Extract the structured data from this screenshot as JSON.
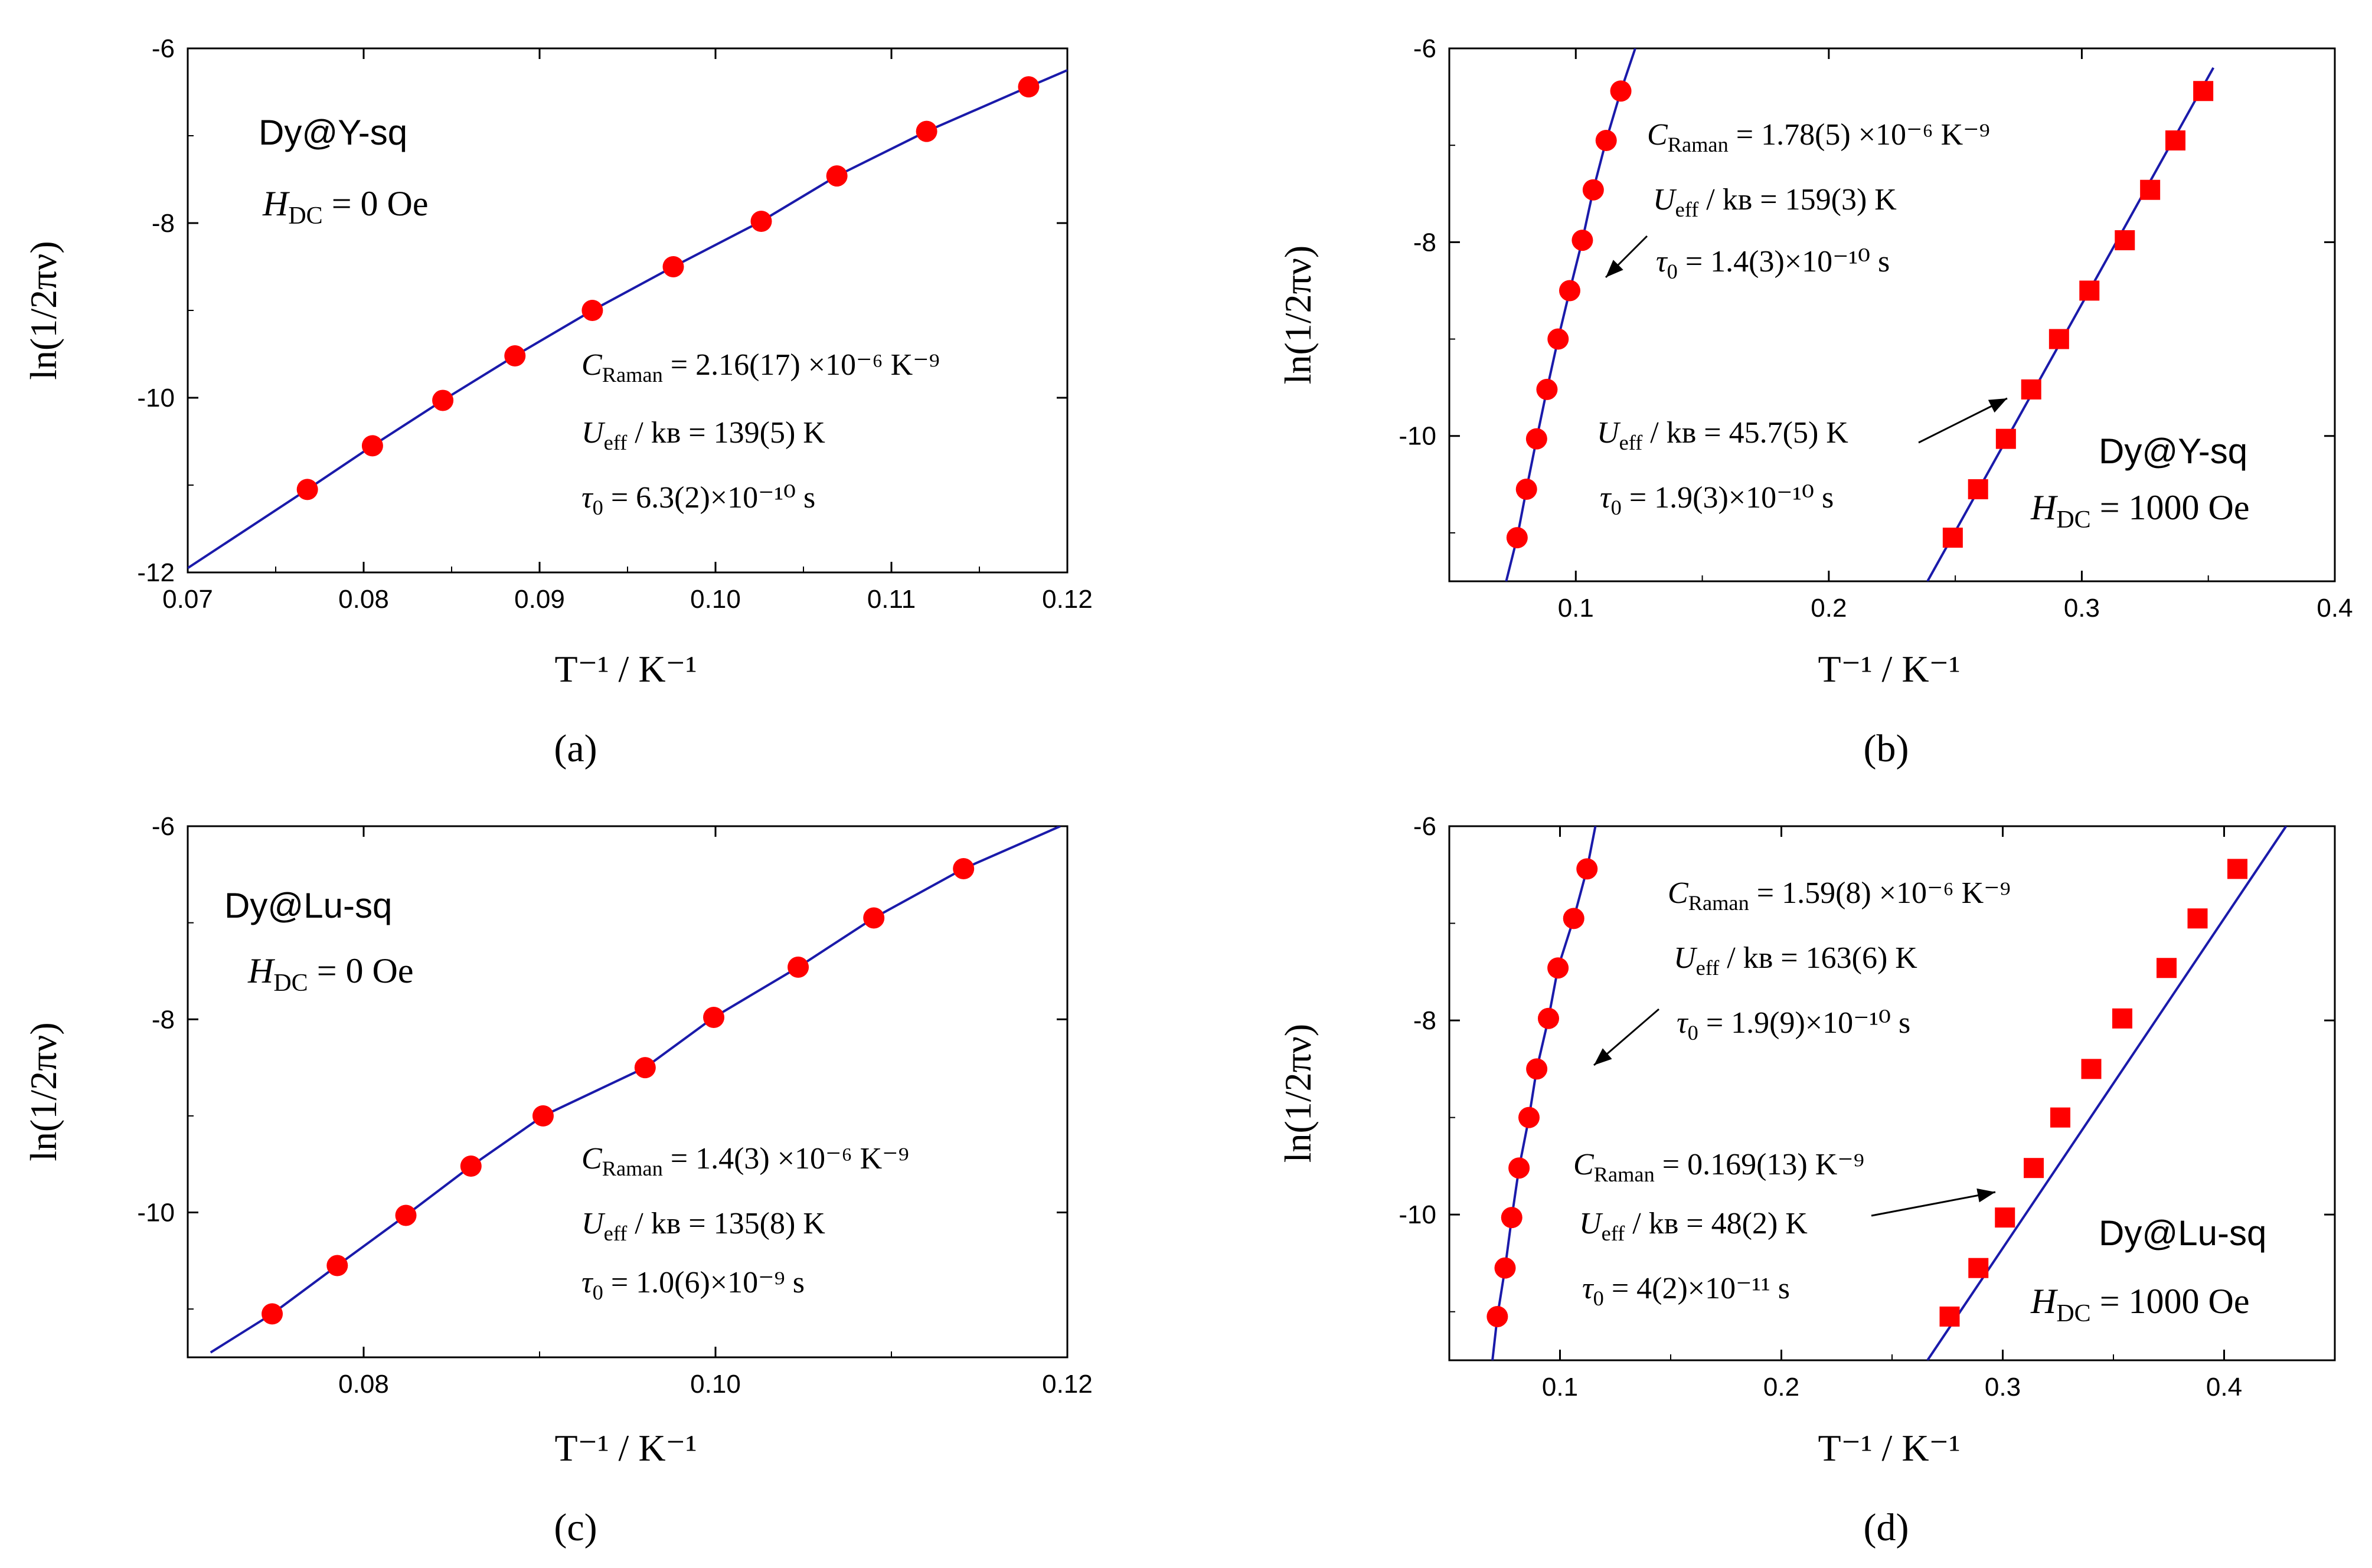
{
  "figure": {
    "colors": {
      "fit_line": "#1a1aaa",
      "marker": "#ff0000",
      "axis": "#000000",
      "background": "#ffffff"
    }
  },
  "chart_data": [
    {
      "id": "a",
      "type": "scatter",
      "caption": "(a)",
      "xlabel": "T⁻¹ / K⁻¹",
      "ylabel": "ln(1/2πν)",
      "xlim": [
        0.07,
        0.12
      ],
      "ylim": [
        -12,
        -6
      ],
      "xticks": [
        0.07,
        0.08,
        0.09,
        0.1,
        0.11,
        0.12
      ],
      "xtick_labels": [
        "0.07",
        "0.08",
        "0.09",
        "0.10",
        "0.11",
        "0.12"
      ],
      "yticks": [
        -12,
        -10,
        -8,
        -6
      ],
      "ytick_labels": [
        "-12",
        "-10",
        "-8",
        "-6"
      ],
      "sample_label": "Dy@Y-sq",
      "field_label": {
        "sym": "H",
        "sub": "DC",
        "rest": " = 0 Oe"
      },
      "annotations": [
        {
          "pre": "C",
          "sub": "Raman",
          "text": " = 2.16(17) ×10⁻⁶ K⁻⁹"
        },
        {
          "pre": "U",
          "sub": "eff",
          "text": " / kʙ = 139(5) K"
        },
        {
          "pre": "τ",
          "sub": "0",
          "text": " = 6.3(2)×10⁻¹⁰ s"
        }
      ],
      "series": [
        {
          "name": "Dy@Y-sq 0 Oe",
          "marker": "circle",
          "x": [
            0.0768,
            0.0805,
            0.0845,
            0.0886,
            0.093,
            0.0976,
            0.1026,
            0.1069,
            0.112,
            0.1178
          ],
          "y": [
            -11.05,
            -10.55,
            -10.03,
            -9.52,
            -9.0,
            -8.5,
            -7.98,
            -7.46,
            -6.95,
            -6.44
          ]
        }
      ],
      "fit_lines": [
        {
          "x": [
            0.07,
            0.0768,
            0.0805,
            0.0845,
            0.0886,
            0.093,
            0.0976,
            0.1026,
            0.1069,
            0.112,
            0.1178,
            0.12
          ],
          "y": [
            -11.95,
            -11.05,
            -10.55,
            -10.03,
            -9.52,
            -9.0,
            -8.5,
            -7.98,
            -7.46,
            -6.95,
            -6.44,
            -6.25
          ]
        }
      ]
    },
    {
      "id": "b",
      "type": "scatter",
      "caption": "(b)",
      "xlabel": "T⁻¹ / K⁻¹",
      "ylabel": "ln(1/2πν)",
      "xlim": [
        0.05,
        0.4
      ],
      "ylim": [
        -11.5,
        -6
      ],
      "xticks": [
        0.1,
        0.2,
        0.3,
        0.4
      ],
      "xtick_labels": [
        "0.1",
        "0.2",
        "0.3",
        "0.4"
      ],
      "yticks": [
        -10,
        -8,
        -6
      ],
      "ytick_labels": [
        "-10",
        "-8",
        "-6"
      ],
      "sample_label": "Dy@Y-sq",
      "field_label": {
        "sym": "H",
        "sub": "DC",
        "rest": " = 1000 Oe"
      },
      "annotations": [
        {
          "pre": "C",
          "sub": "Raman",
          "text": " = 1.78(5) ×10⁻⁶ K⁻⁹"
        },
        {
          "pre": "U",
          "sub": "eff",
          "text": " / kʙ = 159(3) K"
        },
        {
          "pre": "τ",
          "sub": "0",
          "text": " = 1.4(3)×10⁻¹⁰ s"
        },
        {
          "pre": "U",
          "sub": "eff",
          "text": " / kʙ = 45.7(5) K"
        },
        {
          "pre": "τ",
          "sub": "0",
          "text": " = 1.9(3)×10⁻¹⁰ s"
        }
      ],
      "series": [
        {
          "name": "Dy@Y-sq 0 Oe",
          "marker": "circle",
          "x": [
            0.0768,
            0.0805,
            0.0845,
            0.0886,
            0.093,
            0.0976,
            0.1026,
            0.1069,
            0.112,
            0.1178
          ],
          "y": [
            -11.05,
            -10.55,
            -10.03,
            -9.52,
            -9.0,
            -8.5,
            -7.98,
            -7.46,
            -6.95,
            -6.44
          ]
        },
        {
          "name": "Dy@Y-sq 1000 Oe",
          "marker": "square",
          "x": [
            0.249,
            0.259,
            0.27,
            0.28,
            0.291,
            0.303,
            0.317,
            0.327,
            0.337,
            0.348
          ],
          "y": [
            -11.05,
            -10.55,
            -10.03,
            -9.52,
            -9.0,
            -8.5,
            -7.98,
            -7.46,
            -6.95,
            -6.44
          ]
        }
      ],
      "fit_lines": [
        {
          "x": [
            0.0725,
            0.0768,
            0.0805,
            0.0845,
            0.0886,
            0.093,
            0.0976,
            0.1026,
            0.1069,
            0.112,
            0.1178,
            0.1235
          ],
          "y": [
            -11.5,
            -11.05,
            -10.55,
            -10.03,
            -9.52,
            -9.0,
            -8.5,
            -7.98,
            -7.46,
            -6.95,
            -6.44,
            -6.0
          ]
        },
        {
          "x": [
            0.239,
            0.352
          ],
          "y": [
            -11.5,
            -6.2
          ]
        }
      ]
    },
    {
      "id": "c",
      "type": "scatter",
      "caption": "(c)",
      "xlabel": "T⁻¹ / K⁻¹",
      "ylabel": "ln(1/2πν)",
      "xlim": [
        0.07,
        0.12
      ],
      "ylim": [
        -11.5,
        -6
      ],
      "xticks": [
        0.08,
        0.1,
        0.12
      ],
      "xtick_labels": [
        "0.08",
        "0.10",
        "0.12"
      ],
      "yticks": [
        -10,
        -8,
        -6
      ],
      "ytick_labels": [
        "-10",
        "-8",
        "-6"
      ],
      "sample_label": "Dy@Lu-sq",
      "field_label": {
        "sym": "H",
        "sub": "DC",
        "rest": " = 0 Oe"
      },
      "annotations": [
        {
          "pre": "C",
          "sub": "Raman",
          "text": " = 1.4(3) ×10⁻⁶ K⁻⁹"
        },
        {
          "pre": "U",
          "sub": "eff",
          "text": " / kʙ = 135(8) K"
        },
        {
          "pre": "τ",
          "sub": "0",
          "text": " = 1.0(6)×10⁻⁹ s"
        }
      ],
      "series": [
        {
          "name": "Dy@Lu-sq 0 Oe",
          "marker": "circle",
          "x": [
            0.0748,
            0.0785,
            0.0824,
            0.0861,
            0.0902,
            0.096,
            0.0999,
            0.1047,
            0.109,
            0.1141
          ],
          "y": [
            -11.05,
            -10.55,
            -10.03,
            -9.52,
            -9.0,
            -8.5,
            -7.98,
            -7.46,
            -6.95,
            -6.44
          ]
        }
      ],
      "fit_lines": [
        {
          "x": [
            0.0713,
            0.0748,
            0.0785,
            0.0824,
            0.0861,
            0.0902,
            0.096,
            0.0999,
            0.1047,
            0.109,
            0.1141,
            0.1196
          ],
          "y": [
            -11.45,
            -11.05,
            -10.55,
            -10.03,
            -9.52,
            -9.0,
            -8.5,
            -7.98,
            -7.46,
            -6.95,
            -6.44,
            -6.0
          ]
        }
      ]
    },
    {
      "id": "d",
      "type": "scatter",
      "caption": "(d)",
      "xlabel": "T⁻¹ / K⁻¹",
      "ylabel": "ln(1/2πν)",
      "xlim": [
        0.05,
        0.45
      ],
      "ylim": [
        -11.5,
        -6
      ],
      "xticks": [
        0.1,
        0.2,
        0.3,
        0.4
      ],
      "xtick_labels": [
        "0.1",
        "0.2",
        "0.3",
        "0.4"
      ],
      "yticks": [
        -10,
        -8,
        -6
      ],
      "ytick_labels": [
        "-10",
        "-8",
        "-6"
      ],
      "sample_label": "Dy@Lu-sq",
      "field_label": {
        "sym": "H",
        "sub": "DC",
        "rest": " = 1000 Oe"
      },
      "annotations": [
        {
          "pre": "C",
          "sub": "Raman",
          "text": " = 1.59(8) ×10⁻⁶ K⁻⁹"
        },
        {
          "pre": "U",
          "sub": "eff",
          "text": " / kʙ = 163(6) K"
        },
        {
          "pre": "τ",
          "sub": "0",
          "text": " = 1.9(9)×10⁻¹⁰ s"
        },
        {
          "pre": "C",
          "sub": "Raman",
          "text": " = 0.169(13) K⁻⁹"
        },
        {
          "pre": "U",
          "sub": "eff",
          "text": " / kʙ = 48(2) K"
        },
        {
          "pre": "τ",
          "sub": "0",
          "text": " = 4(2)×10⁻¹¹ s"
        }
      ],
      "series": [
        {
          "name": "Dy@Lu-sq 0 Oe",
          "marker": "circle",
          "x": [
            0.0717,
            0.0752,
            0.0782,
            0.0815,
            0.086,
            0.0895,
            0.0948,
            0.0991,
            0.1062,
            0.1122
          ],
          "y": [
            -11.05,
            -10.55,
            -10.03,
            -9.52,
            -9.0,
            -8.5,
            -7.98,
            -7.46,
            -6.95,
            -6.44
          ]
        },
        {
          "name": "Dy@Lu-sq 1000 Oe",
          "marker": "square",
          "x": [
            0.276,
            0.289,
            0.301,
            0.314,
            0.326,
            0.34,
            0.354,
            0.374,
            0.388,
            0.406
          ],
          "y": [
            -11.05,
            -10.55,
            -10.03,
            -9.52,
            -9.0,
            -8.5,
            -7.98,
            -7.46,
            -6.95,
            -6.44
          ]
        }
      ],
      "fit_lines": [
        {
          "x": [
            0.0695,
            0.0717,
            0.0752,
            0.0782,
            0.0815,
            0.086,
            0.0895,
            0.0948,
            0.0991,
            0.1062,
            0.1122,
            0.116
          ],
          "y": [
            -11.5,
            -11.05,
            -10.55,
            -10.03,
            -9.52,
            -9.0,
            -8.5,
            -7.98,
            -7.46,
            -6.95,
            -6.44,
            -6.0
          ]
        },
        {
          "x": [
            0.266,
            0.428
          ],
          "y": [
            -11.5,
            -6.0
          ]
        }
      ]
    }
  ]
}
